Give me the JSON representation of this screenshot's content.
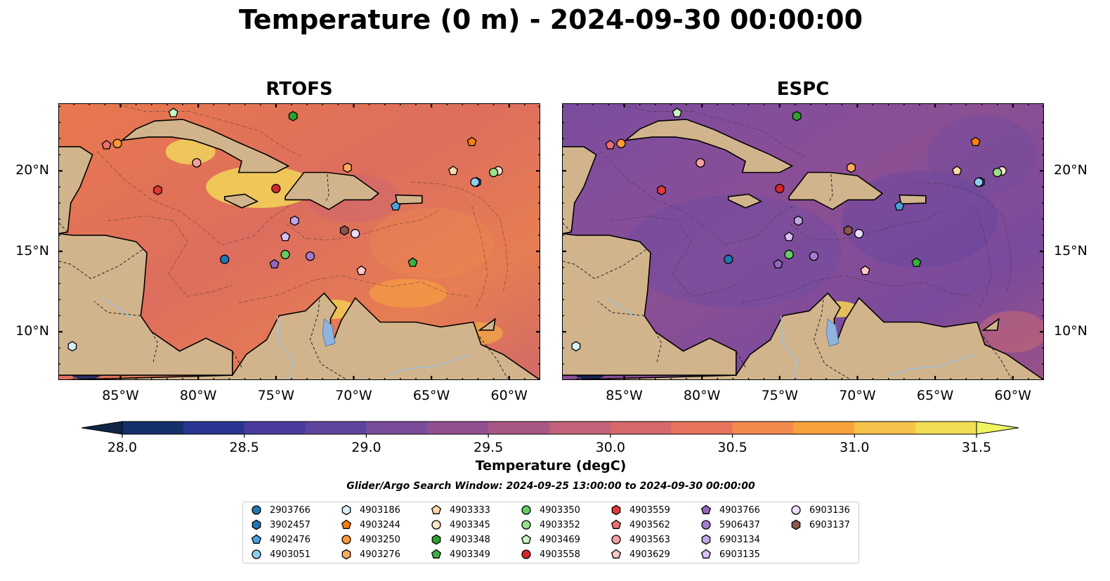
{
  "title": "Temperature (0 m) - 2024-09-30 00:00:00",
  "panels": [
    {
      "name": "RTOFS",
      "style": "warm"
    },
    {
      "name": "ESPC",
      "style": "cool"
    }
  ],
  "axes": {
    "x_ticks": [
      "85°W",
      "80°W",
      "75°W",
      "70°W",
      "65°W",
      "60°W"
    ],
    "x_tick_values": [
      -85,
      -80,
      -75,
      -70,
      -65,
      -60
    ],
    "y_ticks": [
      "20°N",
      "15°N",
      "10°N"
    ],
    "y_tick_values": [
      20,
      15,
      10
    ],
    "lon_range": [
      -89,
      -58
    ],
    "lat_range": [
      7,
      24.2
    ]
  },
  "colorbar": {
    "label": "Temperature (degC)",
    "ticks": [
      "28.0",
      "28.5",
      "29.0",
      "29.5",
      "30.0",
      "30.5",
      "31.0",
      "31.5"
    ],
    "range": [
      28.0,
      31.5
    ],
    "step": 0.25,
    "colors": [
      "#0f2447",
      "#14306b",
      "#2a3593",
      "#4a3b9e",
      "#5f449e",
      "#7a4d9a",
      "#924f90",
      "#a95785",
      "#c2617a",
      "#d7686a",
      "#e9745d",
      "#f28a4e",
      "#f8a23d",
      "#f6c24a",
      "#f3dd55",
      "#eef562"
    ]
  },
  "search_window": "Glider/Argo Search Window: 2024-09-25 13:00:00 to 2024-09-30 00:00:00",
  "chart_data": {
    "type": "scatter",
    "title": "Temperature (0 m) - 2024-09-30 00:00:00",
    "panels": [
      "RTOFS",
      "ESPC"
    ],
    "xlabel": "",
    "ylabel": "",
    "colorbar_label": "Temperature (degC)",
    "colorbar_range": [
      28.0,
      31.5
    ],
    "grid": false,
    "legend_placement": "bottom-center",
    "series": [
      {
        "name": "2903766",
        "marker": "circle",
        "color": "#1f77b4",
        "lon": -78.3,
        "lat": 14.5
      },
      {
        "name": "3902457",
        "marker": "hexagon",
        "color": "#1f77b4",
        "lon": -62.1,
        "lat": 19.3
      },
      {
        "name": "4902476",
        "marker": "pentagon",
        "color": "#4aa3df",
        "lon": -67.3,
        "lat": 17.8
      },
      {
        "name": "4903051",
        "marker": "circle",
        "color": "#8ecdf0",
        "lon": -62.2,
        "lat": 19.3
      },
      {
        "name": "4903186",
        "marker": "hexagon",
        "color": "#d8eefa",
        "lon": -88.1,
        "lat": 9.1
      },
      {
        "name": "4903244",
        "marker": "pentagon",
        "color": "#ff7f0e",
        "lon": -62.4,
        "lat": 21.8
      },
      {
        "name": "4903250",
        "marker": "circle",
        "color": "#ff9933",
        "lon": -85.2,
        "lat": 21.7
      },
      {
        "name": "4903276",
        "marker": "hexagon",
        "color": "#ffab5e",
        "lon": -70.4,
        "lat": 20.2
      },
      {
        "name": "4903333",
        "marker": "pentagon",
        "color": "#ffd8a8",
        "lon": -63.6,
        "lat": 20.0
      },
      {
        "name": "4903345",
        "marker": "circle",
        "color": "#ffe5cc",
        "lon": -60.7,
        "lat": 20.0
      },
      {
        "name": "4903348",
        "marker": "hexagon",
        "color": "#2ca02c",
        "lon": -73.9,
        "lat": 23.4
      },
      {
        "name": "4903349",
        "marker": "pentagon",
        "color": "#3cb043",
        "lon": -66.2,
        "lat": 14.3
      },
      {
        "name": "4903350",
        "marker": "circle",
        "color": "#66cc66",
        "lon": -74.4,
        "lat": 14.8
      },
      {
        "name": "4903352",
        "marker": "circle",
        "color": "#98df8a",
        "lon": -61.0,
        "lat": 19.9
      },
      {
        "name": "4903469",
        "marker": "pentagon",
        "color": "#c7f5c0",
        "lon": -81.6,
        "lat": 23.6
      },
      {
        "name": "4903558",
        "marker": "circle",
        "color": "#d62728",
        "lon": -75.0,
        "lat": 18.9
      },
      {
        "name": "4903559",
        "marker": "hexagon",
        "color": "#e03a3a",
        "lon": -82.6,
        "lat": 18.8
      },
      {
        "name": "4903562",
        "marker": "pentagon",
        "color": "#ec7070",
        "lon": -85.9,
        "lat": 21.6
      },
      {
        "name": "4903563",
        "marker": "circle",
        "color": "#f4a0a0",
        "lon": -80.1,
        "lat": 20.5
      },
      {
        "name": "4903629",
        "marker": "pentagon",
        "color": "#ffc8c8",
        "lon": -69.5,
        "lat": 13.8
      },
      {
        "name": "4903766",
        "marker": "pentagon",
        "color": "#9467bd",
        "lon": -75.1,
        "lat": 14.2
      },
      {
        "name": "5906437",
        "marker": "circle",
        "color": "#a47cd0",
        "lon": -72.8,
        "lat": 14.7
      },
      {
        "name": "6903134",
        "marker": "hexagon",
        "color": "#c3a6ea",
        "lon": -73.8,
        "lat": 16.9
      },
      {
        "name": "6903135",
        "marker": "pentagon",
        "color": "#d8c0f5",
        "lon": -74.4,
        "lat": 15.9
      },
      {
        "name": "6903136",
        "marker": "circle",
        "color": "#ecdcff",
        "lon": -69.9,
        "lat": 16.1
      },
      {
        "name": "6903137",
        "marker": "hexagon",
        "color": "#8c564b",
        "lon": -70.6,
        "lat": 16.3
      }
    ]
  }
}
